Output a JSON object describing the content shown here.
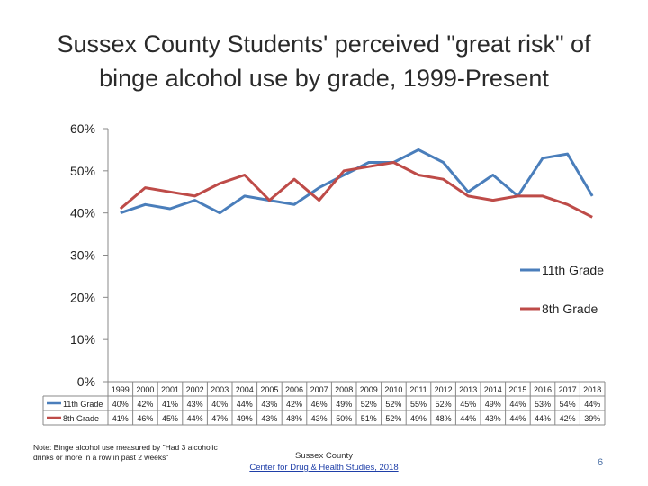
{
  "title_line1": "Sussex County Students' perceived \"great risk\" of",
  "title_line2": "binge alcohol use by grade, 1999-Present",
  "chart_data": {
    "type": "line",
    "x": [
      "1999",
      "2000",
      "2001",
      "2002",
      "2003",
      "2004",
      "2005",
      "2006",
      "2007",
      "2008",
      "2009",
      "2010",
      "2011",
      "2012",
      "2013",
      "2014",
      "2015",
      "2016",
      "2017",
      "2018"
    ],
    "series": [
      {
        "name": "11th Grade",
        "color": "#4a7ebb",
        "values": [
          40,
          42,
          41,
          43,
          40,
          44,
          43,
          42,
          46,
          49,
          52,
          52,
          55,
          52,
          45,
          49,
          44,
          53,
          54,
          44
        ],
        "labels": [
          "40%",
          "42%",
          "41%",
          "43%",
          "40%",
          "44%",
          "43%",
          "42%",
          "46%",
          "49%",
          "52%",
          "52%",
          "55%",
          "52%",
          "45%",
          "49%",
          "44%",
          "53%",
          "54%",
          "44%"
        ]
      },
      {
        "name": "8th Grade",
        "color": "#be4b48",
        "values": [
          41,
          46,
          45,
          44,
          47,
          49,
          43,
          48,
          43,
          50,
          51,
          52,
          49,
          48,
          44,
          43,
          44,
          44,
          42,
          39
        ],
        "labels": [
          "41%",
          "46%",
          "45%",
          "44%",
          "47%",
          "49%",
          "43%",
          "48%",
          "43%",
          "50%",
          "51%",
          "52%",
          "49%",
          "48%",
          "44%",
          "43%",
          "44%",
          "44%",
          "42%",
          "39%"
        ]
      }
    ],
    "ylim": [
      0,
      60
    ],
    "yticks": [
      "0%",
      "10%",
      "20%",
      "30%",
      "40%",
      "50%",
      "60%"
    ],
    "grid": false,
    "legend_position": "right"
  },
  "note": "Note: Binge alcohol use measured by \"Had 3 alcoholic drinks or more in a row in past 2 weeks\"",
  "footer": {
    "org": "Sussex County",
    "link": "Center for Drug & Health Studies, 2018"
  },
  "page_number": "6"
}
